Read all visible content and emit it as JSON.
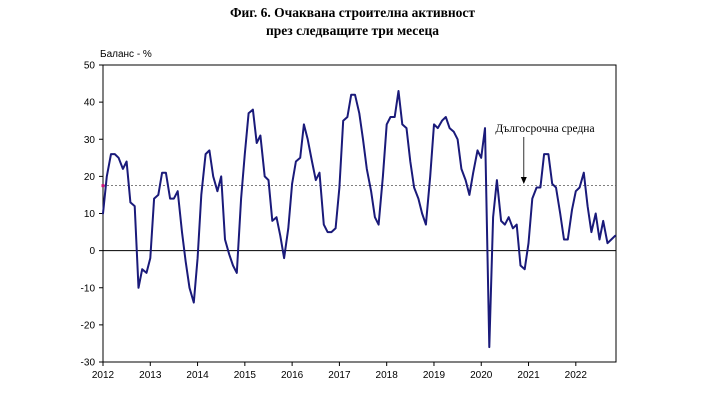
{
  "chart_data": {
    "type": "line",
    "title_lines": [
      "Фиг. 6. Очаквана строителна активност",
      "през следващите три месеца"
    ],
    "ylabel": "Баланс - %",
    "ylim": [
      -30,
      50
    ],
    "yticks": [
      50,
      40,
      30,
      20,
      10,
      0,
      -10,
      -20,
      -30
    ],
    "xlim": [
      2012,
      2022.85
    ],
    "xticks": [
      2012,
      2013,
      2014,
      2015,
      2016,
      2017,
      2018,
      2019,
      2020,
      2021,
      2022
    ],
    "xtick_labels": [
      "2012",
      "2013",
      "2014",
      "2015",
      "2016",
      "2017",
      "2018",
      "2019",
      "2020",
      "2021",
      "2022"
    ],
    "grid": false,
    "colors": {
      "series": "#1a1a7a",
      "reference": "#555555",
      "marker": "#cc1177"
    },
    "reference_line": {
      "label": "Дългосрочна средна",
      "value": 17.5
    },
    "series": [
      {
        "x": [
          2012.0,
          2012.08,
          2012.17,
          2012.25,
          2012.33,
          2012.42,
          2012.5,
          2012.58,
          2012.67,
          2012.75,
          2012.83,
          2012.92,
          2013.0,
          2013.08,
          2013.17,
          2013.25,
          2013.33,
          2013.42,
          2013.5,
          2013.58,
          2013.67,
          2013.75,
          2013.83,
          2013.92,
          2014.0,
          2014.08,
          2014.17,
          2014.25,
          2014.33,
          2014.42,
          2014.5,
          2014.58,
          2014.67,
          2014.75,
          2014.83,
          2014.92,
          2015.0,
          2015.08,
          2015.17,
          2015.25,
          2015.33,
          2015.42,
          2015.5,
          2015.58,
          2015.67,
          2015.75,
          2015.83,
          2015.92,
          2016.0,
          2016.08,
          2016.17,
          2016.25,
          2016.33,
          2016.42,
          2016.5,
          2016.58,
          2016.67,
          2016.75,
          2016.83,
          2016.92,
          2017.0,
          2017.08,
          2017.17,
          2017.25,
          2017.33,
          2017.42,
          2017.5,
          2017.58,
          2017.67,
          2017.75,
          2017.83,
          2017.92,
          2018.0,
          2018.08,
          2018.17,
          2018.25,
          2018.33,
          2018.42,
          2018.5,
          2018.58,
          2018.67,
          2018.75,
          2018.83,
          2018.92,
          2019.0,
          2019.08,
          2019.17,
          2019.25,
          2019.33,
          2019.42,
          2019.5,
          2019.58,
          2019.67,
          2019.75,
          2019.83,
          2019.92,
          2020.0,
          2020.08,
          2020.17,
          2020.25,
          2020.33,
          2020.42,
          2020.5,
          2020.58,
          2020.67,
          2020.75,
          2020.83,
          2020.92,
          2021.0,
          2021.08,
          2021.17,
          2021.25,
          2021.33,
          2021.42,
          2021.5,
          2021.58,
          2021.67,
          2021.75,
          2021.83,
          2021.92,
          2022.0,
          2022.08,
          2022.17,
          2022.25,
          2022.33,
          2022.42,
          2022.5,
          2022.58,
          2022.67,
          2022.75,
          2022.83
        ],
        "values": [
          10,
          20,
          26,
          26,
          25,
          22,
          24,
          13,
          12,
          -10,
          -5,
          -6,
          -2,
          14,
          15,
          21,
          21,
          14,
          14,
          16,
          5,
          -3,
          -10,
          -14,
          -2,
          15,
          26,
          27,
          20,
          16,
          20,
          3,
          -1,
          -4,
          -6,
          14,
          26,
          37,
          38,
          29,
          31,
          20,
          19,
          8,
          9,
          4,
          -2,
          6,
          18,
          24,
          25,
          34,
          30,
          24,
          19,
          21,
          7,
          5,
          5,
          6,
          17,
          35,
          36,
          42,
          42,
          37,
          30,
          22,
          16,
          9,
          7,
          20,
          34,
          36,
          36,
          43,
          34,
          33,
          24,
          17,
          14,
          10,
          7,
          20,
          34,
          33,
          35,
          36,
          33,
          32,
          30,
          22,
          19,
          15,
          21,
          27,
          25,
          33,
          -26,
          9,
          19,
          8,
          7,
          9,
          6,
          7,
          -4,
          -5,
          2,
          14,
          17,
          17,
          26,
          26,
          18,
          17,
          10,
          3,
          3,
          11,
          16,
          17,
          21,
          12,
          5,
          10,
          3,
          8,
          2,
          3,
          4
        ]
      }
    ]
  }
}
